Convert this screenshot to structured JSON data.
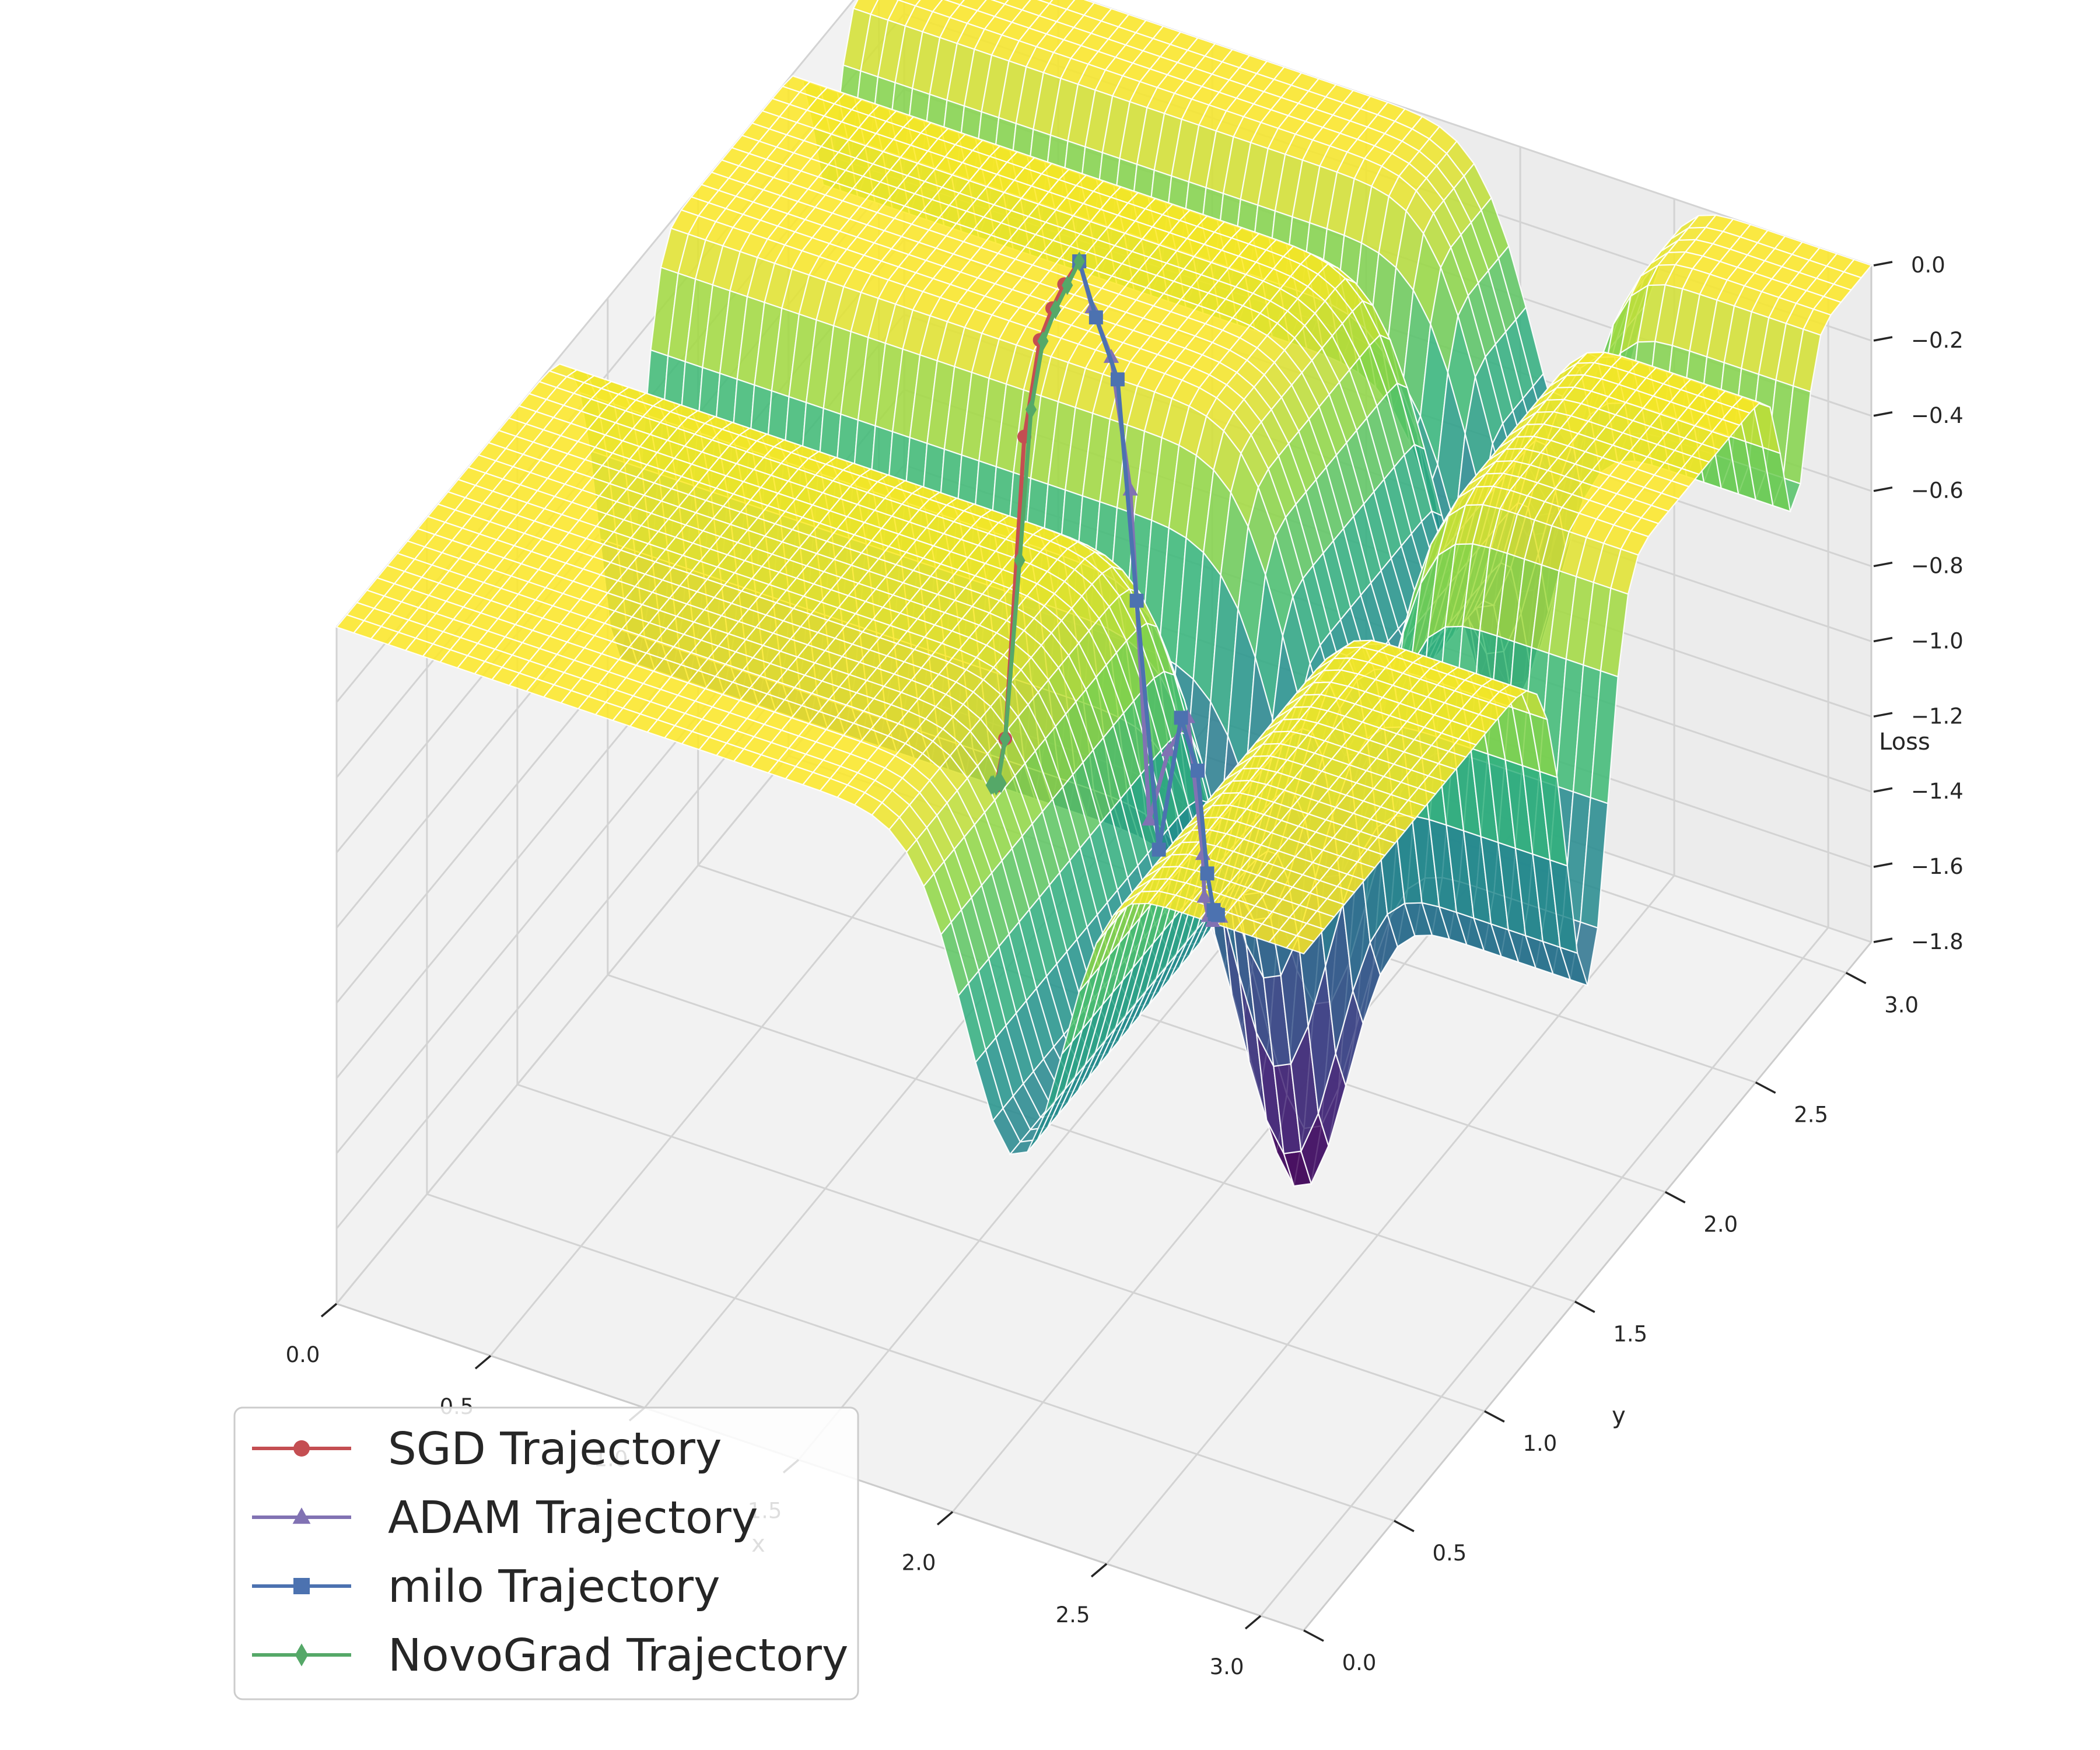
{
  "chart_data": {
    "type": "surface3d",
    "title": "",
    "xlabel": "x",
    "ylabel": "y",
    "zlabel": "Loss",
    "xlim": [
      0.0,
      3.14
    ],
    "ylim": [
      0.0,
      3.14
    ],
    "zlim": [
      -1.8,
      0.0
    ],
    "x_ticks": [
      "0.0",
      "0.5",
      "1.0",
      "1.5",
      "2.0",
      "2.5",
      "3.0"
    ],
    "y_ticks": [
      "0.0",
      "0.5",
      "1.0",
      "1.5",
      "2.0",
      "2.5",
      "3.0"
    ],
    "z_ticks": [
      "0.0",
      "−0.2",
      "−0.4",
      "−0.6",
      "−0.8",
      "−1.0",
      "−1.2",
      "−1.4",
      "−1.6",
      "−1.8"
    ],
    "colormap": "viridis",
    "grid": true,
    "legend_position": "lower-left",
    "surface": {
      "function": "-sin(x)*sin(x^2/pi)^20 - sin(y)*sin(2*y^2/pi)^20",
      "min_loss": -1.8,
      "max_loss": 0.0
    },
    "series": [
      {
        "name": "SGD Trajectory",
        "color": "#c44e52",
        "marker": "circle",
        "points": [
          [
            1.12,
            2.2
          ],
          [
            1.13,
            2.1
          ],
          [
            1.15,
            2.0
          ],
          [
            1.18,
            1.88
          ],
          [
            1.2,
            1.76
          ],
          [
            1.22,
            1.62
          ],
          [
            1.22,
            1.57
          ],
          [
            1.22,
            1.57
          ]
        ]
      },
      {
        "name": "ADAM Trajectory",
        "color": "#8172b3",
        "marker": "triangle",
        "points": [
          [
            1.12,
            2.2
          ],
          [
            1.25,
            2.05
          ],
          [
            1.4,
            1.9
          ],
          [
            1.55,
            1.75
          ],
          [
            1.7,
            1.6
          ],
          [
            1.85,
            1.45
          ],
          [
            2.0,
            1.3
          ],
          [
            2.12,
            1.18
          ],
          [
            2.16,
            1.12
          ],
          [
            2.19,
            1.09
          ],
          [
            2.2,
            1.11
          ],
          [
            2.23,
            1.09
          ],
          [
            2.21,
            1.08
          ],
          [
            2.2,
            1.1
          ],
          [
            2.2,
            1.11
          ]
        ]
      },
      {
        "name": "milo Trajectory",
        "color": "#4c72b0",
        "marker": "square",
        "points": [
          [
            1.12,
            2.2
          ],
          [
            1.28,
            2.02
          ],
          [
            1.45,
            1.85
          ],
          [
            1.6,
            1.7
          ],
          [
            1.76,
            1.55
          ],
          [
            1.92,
            1.4
          ],
          [
            2.05,
            1.27
          ],
          [
            2.14,
            1.17
          ],
          [
            2.19,
            1.12
          ],
          [
            2.2,
            1.11
          ],
          [
            2.21,
            1.11
          ],
          [
            2.2,
            1.11
          ],
          [
            2.2,
            1.11
          ]
        ]
      },
      {
        "name": "NovoGrad Trajectory",
        "color": "#55a868",
        "marker": "diamond",
        "points": [
          [
            1.12,
            2.2
          ],
          [
            1.14,
            2.1
          ],
          [
            1.16,
            2.0
          ],
          [
            1.19,
            1.88
          ],
          [
            1.21,
            1.78
          ],
          [
            1.22,
            1.7
          ],
          [
            1.22,
            1.62
          ],
          [
            1.22,
            1.58
          ],
          [
            1.22,
            1.57
          ],
          [
            1.21,
            1.56
          ],
          [
            1.23,
            1.58
          ],
          [
            1.21,
            1.57
          ],
          [
            1.22,
            1.57
          ]
        ]
      }
    ]
  }
}
